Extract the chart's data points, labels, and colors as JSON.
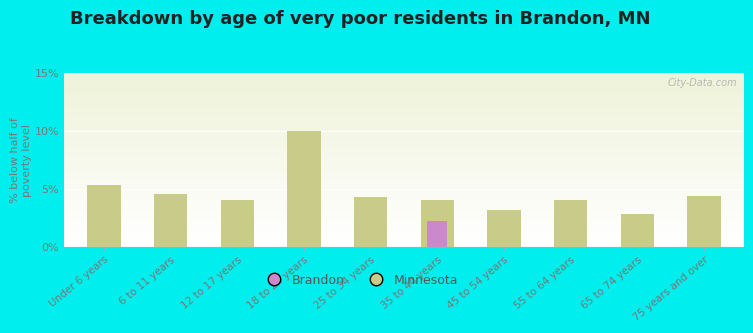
{
  "title": "Breakdown by age of very poor residents in Brandon, MN",
  "ylabel": "% below half of\npoverty level",
  "categories": [
    "Under 6 years",
    "6 to 11 years",
    "12 to 17 years",
    "18 to 24 years",
    "25 to 34 years",
    "35 to 44 years",
    "45 to 54 years",
    "55 to 64 years",
    "65 to 74 years",
    "75 years and over"
  ],
  "brandon_values": [
    null,
    null,
    null,
    null,
    null,
    2.2,
    null,
    null,
    null,
    null
  ],
  "minnesota_values": [
    5.3,
    4.6,
    4.0,
    10.0,
    4.3,
    4.0,
    3.2,
    4.0,
    2.8,
    4.4
  ],
  "brandon_color": "#cc88cc",
  "minnesota_color": "#c8cc88",
  "ylim": [
    0,
    15
  ],
  "yticks": [
    0,
    5,
    10,
    15
  ],
  "ytick_labels": [
    "0%",
    "5%",
    "10%",
    "15%"
  ],
  "background_color": "#00eeee",
  "title_fontsize": 13,
  "bar_width": 0.5,
  "watermark": "City-Data.com"
}
